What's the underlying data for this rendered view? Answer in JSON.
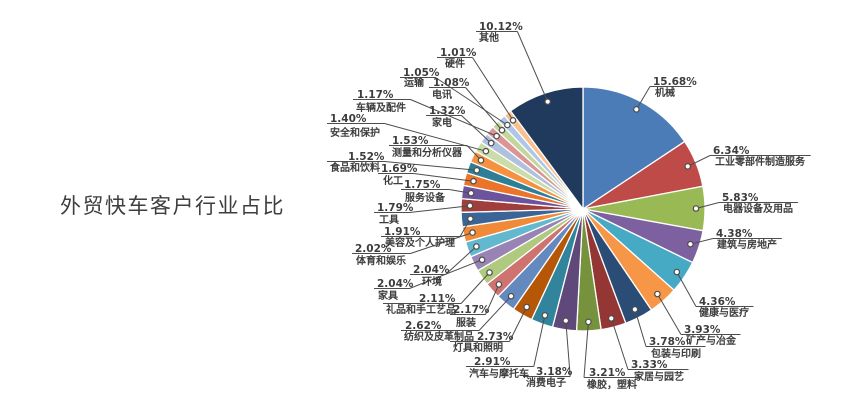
{
  "title": {
    "text": "外贸快车客户行业占比"
  },
  "colors": {
    "background": "#FFFFFF",
    "title_text": "#3E3E3E",
    "label_text": "#3D3D3D",
    "leader_line": "#4D4D4D",
    "slice_border": "#FFFFFF",
    "dot_fill": "#FFFFFF"
  },
  "chart_data": {
    "type": "pie",
    "title": "外贸快车客户行业占比",
    "value_format": "percent",
    "start_angle": "top",
    "direction": "clockwise",
    "total": 100,
    "legend": "none",
    "slices": [
      {
        "label": "机械",
        "value": 15.68,
        "display": "15.68%",
        "color": "#4B7CB8"
      },
      {
        "label": "工业零部件制造服务",
        "value": 6.34,
        "display": "6.34%",
        "color": "#BE4B48"
      },
      {
        "label": "电器设备及用品",
        "value": 5.83,
        "display": "5.83%",
        "color": "#98B954"
      },
      {
        "label": "建筑与房地产",
        "value": 4.38,
        "display": "4.38%",
        "color": "#7D60A0"
      },
      {
        "label": "健康与医疗",
        "value": 4.36,
        "display": "4.36%",
        "color": "#46AAC5"
      },
      {
        "label": "矿产与冶金",
        "value": 3.93,
        "display": "3.93%",
        "color": "#F79646"
      },
      {
        "label": "包装与印刷",
        "value": 3.78,
        "display": "3.78%",
        "color": "#2B4D75"
      },
      {
        "label": "家居与园艺",
        "value": 3.33,
        "display": "3.33%",
        "color": "#943634"
      },
      {
        "label": "橡胶，塑料",
        "value": 3.21,
        "display": "3.21%",
        "color": "#76923C"
      },
      {
        "label": "消费电子",
        "value": 3.18,
        "display": "3.18%",
        "color": "#5F497A"
      },
      {
        "label": "汽车与摩托车",
        "value": 2.91,
        "display": "2.91%",
        "color": "#31849B"
      },
      {
        "label": "灯具和照明",
        "value": 2.73,
        "display": "2.73%",
        "color": "#B65708"
      },
      {
        "label": "纺织及皮革制品",
        "value": 2.62,
        "display": "2.62%",
        "color": "#6489BE"
      },
      {
        "label": "服装",
        "value": 2.17,
        "display": "2.17%",
        "color": "#CE7370"
      },
      {
        "label": "礼品和手工艺品",
        "value": 2.11,
        "display": "2.11%",
        "color": "#AFC97F"
      },
      {
        "label": "家具",
        "value": 2.04,
        "display": "2.04%",
        "color": "#9983B5"
      },
      {
        "label": "环境",
        "value": 2.04,
        "display": "2.04%",
        "color": "#62B8CE"
      },
      {
        "label": "体育和娱乐",
        "value": 2.02,
        "display": "2.02%",
        "color": "#F08A38"
      },
      {
        "label": "美容及个人护理",
        "value": 1.91,
        "display": "1.91%",
        "color": "#3A6596"
      },
      {
        "label": "工具",
        "value": 1.79,
        "display": "1.79%",
        "color": "#A03E3B"
      },
      {
        "label": "服务设备",
        "value": 1.75,
        "display": "1.75%",
        "color": "#6B549B"
      },
      {
        "label": "化工",
        "value": 1.69,
        "display": "1.69%",
        "color": "#E9742A"
      },
      {
        "label": "食品和饮料",
        "value": 1.52,
        "display": "1.52%",
        "color": "#2C7F96"
      },
      {
        "label": "测量和分析仪器",
        "value": 1.53,
        "display": "1.53%",
        "color": "#F59240"
      },
      {
        "label": "安全和保护",
        "value": 1.4,
        "display": "1.40%",
        "color": "#CBDCA8"
      },
      {
        "label": "家电",
        "value": 1.32,
        "display": "1.32%",
        "color": "#B0C1DE"
      },
      {
        "label": "车辆及配件",
        "value": 1.17,
        "display": "1.17%",
        "color": "#D99694"
      },
      {
        "label": "电讯",
        "value": 1.08,
        "display": "1.08%",
        "color": "#C3D69B"
      },
      {
        "label": "运输",
        "value": 1.05,
        "display": "1.05%",
        "color": "#AEC7E8"
      },
      {
        "label": "硬件",
        "value": 1.01,
        "display": "1.01%",
        "color": "#FAC090"
      },
      {
        "label": "其他",
        "value": 10.12,
        "display": "10.12%",
        "color": "#1F3A5C"
      }
    ]
  }
}
